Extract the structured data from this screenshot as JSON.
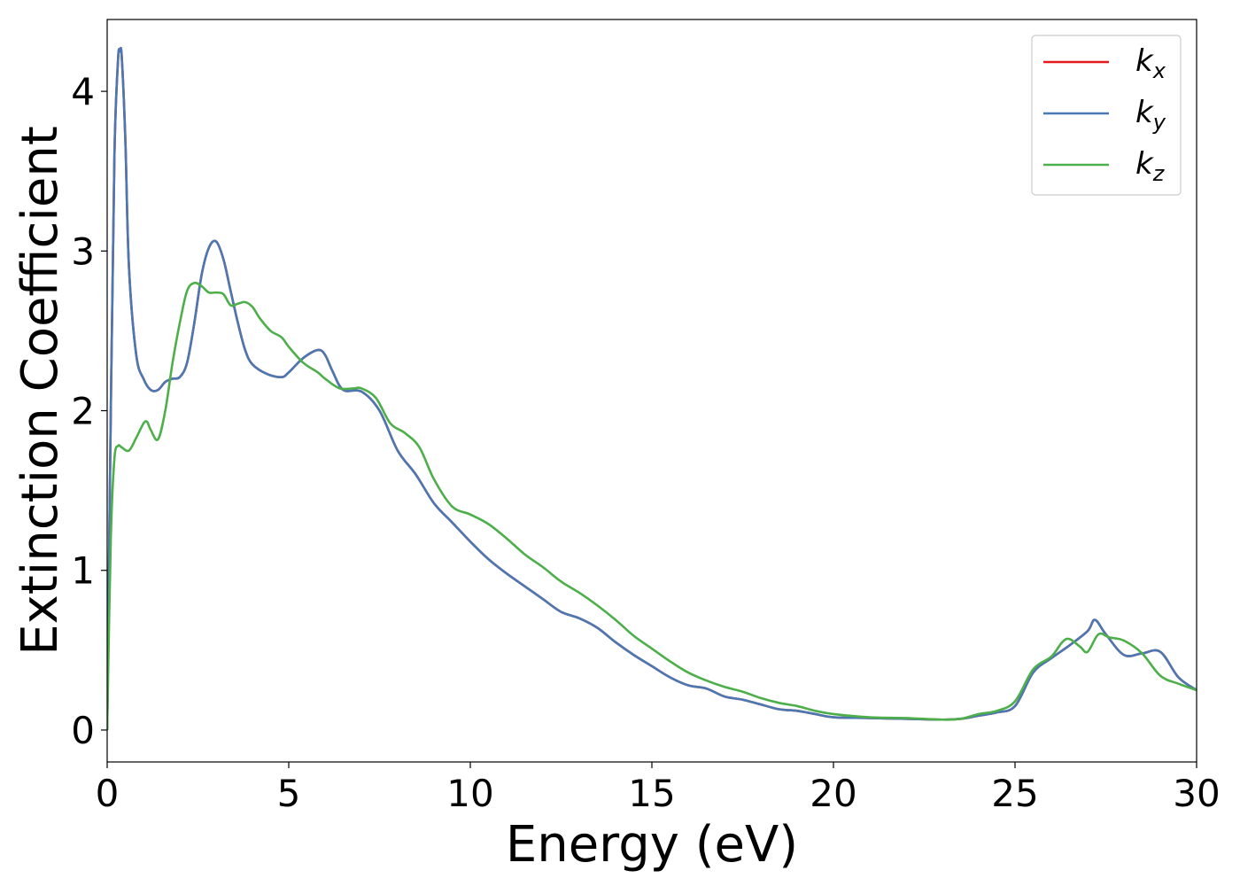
{
  "chart_data": {
    "type": "line",
    "xlabel": "Energy (eV)",
    "ylabel": "Extinction Coefficient",
    "xlim": [
      0,
      30
    ],
    "ylim": [
      -0.2,
      4.45
    ],
    "xticks": [
      0,
      5,
      10,
      15,
      20,
      25,
      30
    ],
    "xtick_labels": [
      "0",
      "5",
      "10",
      "15",
      "20",
      "25",
      "30"
    ],
    "yticks": [
      0,
      1,
      2,
      3,
      4
    ],
    "ytick_labels": [
      "0",
      "1",
      "2",
      "3",
      "4"
    ],
    "grid": false,
    "legend_position": "top-right",
    "series": [
      {
        "name": "k",
        "subscript": "x",
        "color": "#e41a1c",
        "x": [
          0,
          0.1,
          0.2,
          0.3,
          0.35,
          0.4,
          0.5,
          0.6,
          0.8,
          1.0,
          1.2,
          1.4,
          1.6,
          1.8,
          2.0,
          2.2,
          2.4,
          2.6,
          2.8,
          3.0,
          3.2,
          3.4,
          3.6,
          3.8,
          4.0,
          4.4,
          4.8,
          5.0,
          5.4,
          5.8,
          6.0,
          6.2,
          6.5,
          7.0,
          7.5,
          8.0,
          8.5,
          9.0,
          9.5,
          10,
          10.5,
          11,
          11.5,
          12,
          12.5,
          13,
          13.5,
          14,
          14.5,
          15,
          15.5,
          16,
          16.5,
          17,
          17.5,
          18,
          18.5,
          19,
          19.5,
          20,
          21,
          22,
          23,
          23.5,
          24,
          24.5,
          25,
          25.5,
          26,
          26.5,
          27,
          27.2,
          27.5,
          28,
          28.5,
          29,
          29.5,
          30
        ],
        "values": [
          0,
          2.0,
          3.6,
          4.2,
          4.25,
          4.22,
          3.7,
          2.9,
          2.35,
          2.2,
          2.13,
          2.13,
          2.18,
          2.2,
          2.21,
          2.3,
          2.55,
          2.85,
          3.02,
          3.06,
          2.95,
          2.75,
          2.55,
          2.38,
          2.29,
          2.23,
          2.21,
          2.24,
          2.33,
          2.38,
          2.35,
          2.25,
          2.13,
          2.12,
          2.0,
          1.75,
          1.6,
          1.42,
          1.3,
          1.18,
          1.07,
          0.98,
          0.9,
          0.82,
          0.74,
          0.7,
          0.64,
          0.55,
          0.47,
          0.4,
          0.33,
          0.28,
          0.26,
          0.21,
          0.19,
          0.16,
          0.13,
          0.12,
          0.1,
          0.08,
          0.075,
          0.07,
          0.065,
          0.07,
          0.09,
          0.11,
          0.15,
          0.36,
          0.45,
          0.53,
          0.62,
          0.69,
          0.6,
          0.47,
          0.48,
          0.49,
          0.33,
          0.25
        ]
      },
      {
        "name": "k",
        "subscript": "y",
        "color": "#4a78b3",
        "x": [
          0,
          0.1,
          0.2,
          0.3,
          0.35,
          0.4,
          0.5,
          0.6,
          0.8,
          1.0,
          1.2,
          1.4,
          1.6,
          1.8,
          2.0,
          2.2,
          2.4,
          2.6,
          2.8,
          3.0,
          3.2,
          3.4,
          3.6,
          3.8,
          4.0,
          4.4,
          4.8,
          5.0,
          5.4,
          5.8,
          6.0,
          6.2,
          6.5,
          7.0,
          7.5,
          8.0,
          8.5,
          9.0,
          9.5,
          10,
          10.5,
          11,
          11.5,
          12,
          12.5,
          13,
          13.5,
          14,
          14.5,
          15,
          15.5,
          16,
          16.5,
          17,
          17.5,
          18,
          18.5,
          19,
          19.5,
          20,
          21,
          22,
          23,
          23.5,
          24,
          24.5,
          25,
          25.5,
          26,
          26.5,
          27,
          27.2,
          27.5,
          28,
          28.5,
          29,
          29.5,
          30
        ],
        "values": [
          0,
          2.0,
          3.6,
          4.2,
          4.25,
          4.22,
          3.7,
          2.9,
          2.35,
          2.2,
          2.13,
          2.13,
          2.18,
          2.2,
          2.21,
          2.3,
          2.55,
          2.85,
          3.02,
          3.06,
          2.95,
          2.75,
          2.55,
          2.38,
          2.29,
          2.23,
          2.21,
          2.24,
          2.33,
          2.38,
          2.35,
          2.25,
          2.13,
          2.12,
          2.0,
          1.75,
          1.6,
          1.42,
          1.3,
          1.18,
          1.07,
          0.98,
          0.9,
          0.82,
          0.74,
          0.7,
          0.64,
          0.55,
          0.47,
          0.4,
          0.33,
          0.28,
          0.26,
          0.21,
          0.19,
          0.16,
          0.13,
          0.12,
          0.1,
          0.08,
          0.075,
          0.07,
          0.065,
          0.07,
          0.09,
          0.11,
          0.15,
          0.36,
          0.45,
          0.53,
          0.62,
          0.69,
          0.6,
          0.47,
          0.48,
          0.49,
          0.33,
          0.25
        ]
      },
      {
        "name": "k",
        "subscript": "z",
        "color": "#4daf4a",
        "x": [
          0,
          0.1,
          0.2,
          0.3,
          0.4,
          0.6,
          0.8,
          1.0,
          1.1,
          1.2,
          1.4,
          1.6,
          1.8,
          2.0,
          2.2,
          2.4,
          2.6,
          2.8,
          3.0,
          3.2,
          3.4,
          3.6,
          3.8,
          4.0,
          4.2,
          4.5,
          4.8,
          5.0,
          5.4,
          5.8,
          6.0,
          6.4,
          6.8,
          7.0,
          7.4,
          7.8,
          8.2,
          8.6,
          9.0,
          9.5,
          10,
          10.5,
          11,
          11.5,
          12,
          12.5,
          13,
          13.5,
          14,
          14.5,
          15,
          15.5,
          16,
          16.5,
          17,
          17.5,
          18,
          18.5,
          19,
          19.5,
          20,
          21,
          22,
          23,
          23.5,
          24,
          24.5,
          25,
          25.5,
          26,
          26.3,
          26.5,
          26.8,
          27,
          27.3,
          27.6,
          28,
          28.5,
          29,
          29.5,
          30
        ],
        "values": [
          0,
          1.2,
          1.7,
          1.78,
          1.77,
          1.75,
          1.83,
          1.92,
          1.93,
          1.88,
          1.82,
          2.0,
          2.3,
          2.55,
          2.75,
          2.8,
          2.78,
          2.74,
          2.74,
          2.73,
          2.66,
          2.67,
          2.68,
          2.65,
          2.58,
          2.5,
          2.46,
          2.4,
          2.3,
          2.24,
          2.2,
          2.14,
          2.14,
          2.14,
          2.08,
          1.92,
          1.86,
          1.77,
          1.57,
          1.4,
          1.35,
          1.29,
          1.2,
          1.1,
          1.02,
          0.93,
          0.86,
          0.78,
          0.69,
          0.59,
          0.51,
          0.43,
          0.36,
          0.31,
          0.27,
          0.24,
          0.2,
          0.17,
          0.15,
          0.12,
          0.1,
          0.08,
          0.075,
          0.065,
          0.07,
          0.1,
          0.12,
          0.18,
          0.38,
          0.46,
          0.55,
          0.57,
          0.52,
          0.49,
          0.6,
          0.58,
          0.56,
          0.48,
          0.34,
          0.29,
          0.25
        ]
      }
    ]
  }
}
